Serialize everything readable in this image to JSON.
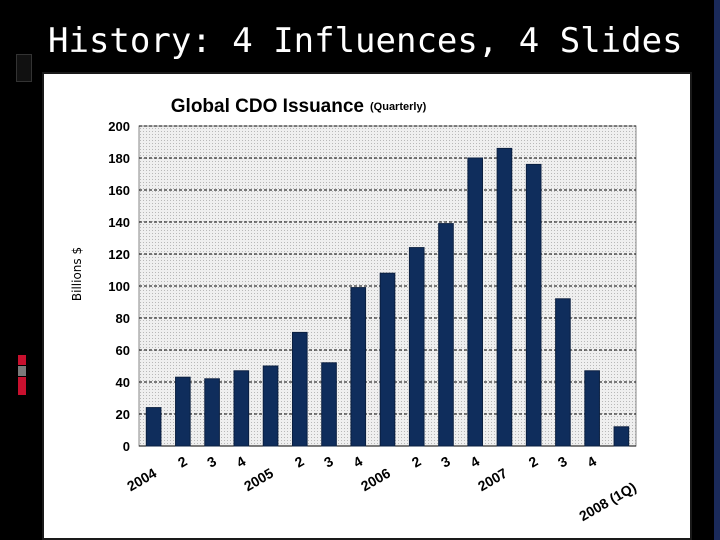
{
  "slide": {
    "title": "History: 4 Influences, 4 Slides"
  },
  "colors": {
    "background": "#000000",
    "bar": "#0f2d5c",
    "accent_red": "#c8102e",
    "accent_gray": "#9a9a9a",
    "plot_bg": "#d9d9d9"
  },
  "chart_data": {
    "type": "bar",
    "title": "Global CDO Issuance",
    "subtitle": "(Quarterly)",
    "ylabel": "Billions $",
    "xlabel": "",
    "ylim": [
      0,
      200
    ],
    "yticks": [
      0,
      20,
      40,
      60,
      80,
      100,
      120,
      140,
      160,
      180,
      200
    ],
    "grid": true,
    "categories": [
      "2004",
      "2",
      "3",
      "4",
      "2005",
      "2",
      "3",
      "4",
      "2006",
      "2",
      "3",
      "4",
      "2007",
      "2",
      "3",
      "4",
      "2008 (1Q)"
    ],
    "values": [
      24,
      43,
      42,
      47,
      50,
      71,
      52,
      99,
      108,
      124,
      139,
      180,
      186,
      176,
      92,
      47,
      12
    ]
  }
}
